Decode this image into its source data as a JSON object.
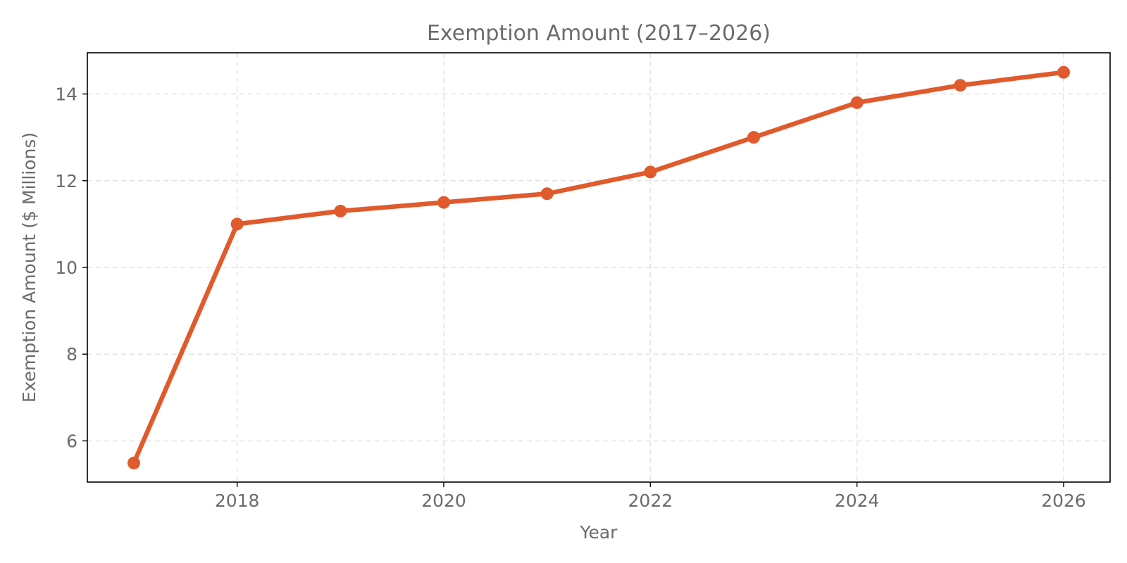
{
  "chart_data": {
    "type": "line",
    "title": "Exemption Amount (2017–2026)",
    "xlabel": "Year",
    "ylabel": "Exemption Amount ($ Millions)",
    "xlim": [
      2016.55,
      2026.45
    ],
    "ylim": [
      5.05,
      14.95
    ],
    "x_ticks": [
      2018,
      2020,
      2022,
      2024,
      2026
    ],
    "y_ticks": [
      6,
      8,
      10,
      12,
      14
    ],
    "grid": true,
    "series": [
      {
        "color": "#e05a2b",
        "marker": "circle",
        "x": [
          2017,
          2018,
          2019,
          2020,
          2021,
          2022,
          2023,
          2024,
          2025,
          2026
        ],
        "y": [
          5.49,
          11.0,
          11.3,
          11.5,
          11.7,
          12.2,
          13.0,
          13.8,
          14.2,
          14.5
        ]
      }
    ]
  }
}
